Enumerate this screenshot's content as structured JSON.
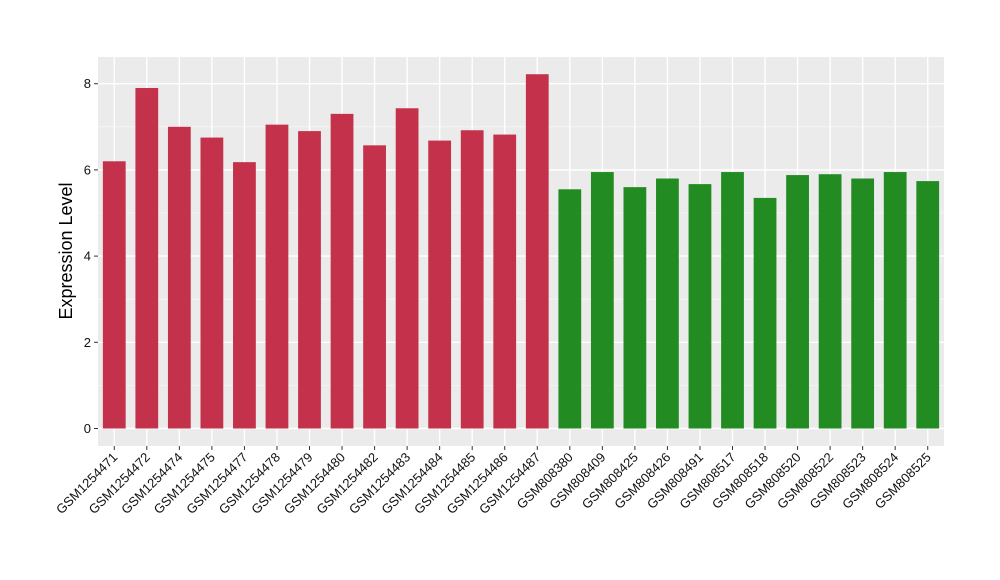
{
  "chart_data": {
    "type": "bar",
    "title": "",
    "xlabel": "",
    "ylabel": "Expression Level",
    "ylim": [
      0,
      8.6
    ],
    "yticks": [
      0,
      2,
      4,
      6,
      8
    ],
    "grid": true,
    "legend": "none",
    "colors": {
      "group_a": "#c4314b",
      "group_b": "#228b22",
      "panel": "#ebebeb",
      "gridline": "#ffffff"
    },
    "categories": [
      "GSM1254471",
      "GSM1254472",
      "GSM1254474",
      "GSM1254475",
      "GSM1254477",
      "GSM1254478",
      "GSM1254479",
      "GSM1254480",
      "GSM1254482",
      "GSM1254483",
      "GSM1254484",
      "GSM1254485",
      "GSM1254486",
      "GSM1254487",
      "GSM808380",
      "GSM808409",
      "GSM808425",
      "GSM808426",
      "GSM808491",
      "GSM808517",
      "GSM808518",
      "GSM808520",
      "GSM808522",
      "GSM808523",
      "GSM808524",
      "GSM808525"
    ],
    "values": [
      6.2,
      7.9,
      7.0,
      6.75,
      6.18,
      7.05,
      6.9,
      7.3,
      6.57,
      7.43,
      6.68,
      6.92,
      6.82,
      8.22,
      5.55,
      5.95,
      5.6,
      5.8,
      5.67,
      5.95,
      5.35,
      5.88,
      5.9,
      5.8,
      5.95,
      5.74
    ],
    "groups": [
      "a",
      "a",
      "a",
      "a",
      "a",
      "a",
      "a",
      "a",
      "a",
      "a",
      "a",
      "a",
      "a",
      "a",
      "b",
      "b",
      "b",
      "b",
      "b",
      "b",
      "b",
      "b",
      "b",
      "b",
      "b",
      "b"
    ]
  }
}
